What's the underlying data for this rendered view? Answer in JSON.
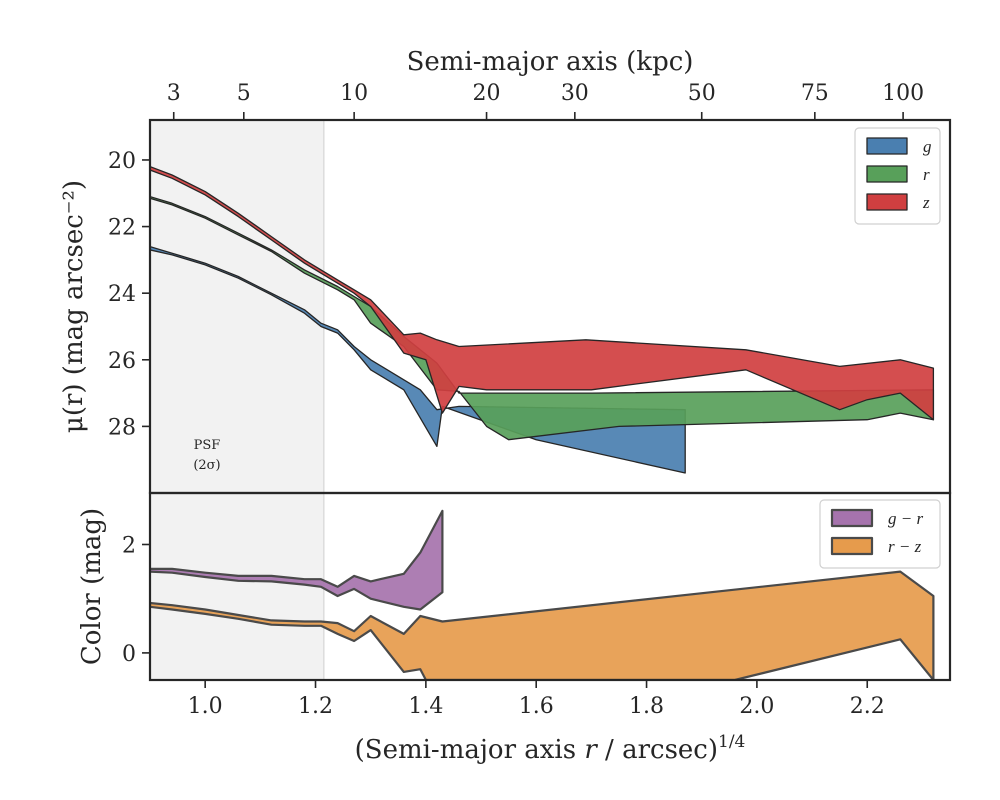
{
  "chart_data": [
    {
      "type": "area",
      "panel": "top",
      "ylabel": "μ(r) (mag arcsec⁻²)",
      "xlabel_top": "Semi-major axis (kpc)",
      "xlim": [
        0.9,
        2.35
      ],
      "ylim": [
        30.0,
        18.8
      ],
      "y_inverted": true,
      "yticks": [
        20,
        22,
        24,
        26,
        28
      ],
      "top_ticks": [
        {
          "label": "3",
          "x": 0.943
        },
        {
          "label": "5",
          "x": 1.07
        },
        {
          "label": "10",
          "x": 1.27
        },
        {
          "label": "20",
          "x": 1.51
        },
        {
          "label": "30",
          "x": 1.67
        },
        {
          "label": "50",
          "x": 1.9
        },
        {
          "label": "75",
          "x": 2.105
        },
        {
          "label": "100",
          "x": 2.265
        }
      ],
      "psf_region": {
        "xmin": 0.9,
        "xmax": 1.215,
        "label_line1": "PSF",
        "label_line2": "(2σ)"
      },
      "series": [
        {
          "name": "g",
          "color": "#4a7fb0",
          "upper": [
            [
              0.9,
              22.6
            ],
            [
              0.94,
              22.8
            ],
            [
              1.0,
              23.1
            ],
            [
              1.06,
              23.5
            ],
            [
              1.12,
              24.0
            ],
            [
              1.18,
              24.5
            ],
            [
              1.21,
              24.9
            ],
            [
              1.24,
              25.1
            ],
            [
              1.27,
              25.6
            ],
            [
              1.3,
              26.0
            ],
            [
              1.36,
              26.6
            ],
            [
              1.39,
              26.9
            ],
            [
              1.42,
              27.5
            ],
            [
              1.46,
              27.4
            ],
            [
              1.87,
              27.5
            ]
          ],
          "lower": [
            [
              1.87,
              29.4
            ],
            [
              1.6,
              28.4
            ],
            [
              1.43,
              27.4
            ],
            [
              1.42,
              28.6
            ],
            [
              1.36,
              26.9
            ],
            [
              1.3,
              26.3
            ],
            [
              1.27,
              25.7
            ],
            [
              1.24,
              25.2
            ],
            [
              1.21,
              25.0
            ],
            [
              1.18,
              24.6
            ],
            [
              1.12,
              24.05
            ],
            [
              1.06,
              23.55
            ],
            [
              1.0,
              23.15
            ],
            [
              0.94,
              22.85
            ],
            [
              0.9,
              22.7
            ]
          ]
        },
        {
          "name": "r",
          "color": "#58a05a",
          "upper": [
            [
              0.9,
              21.1
            ],
            [
              0.94,
              21.3
            ],
            [
              1.0,
              21.7
            ],
            [
              1.06,
              22.2
            ],
            [
              1.12,
              22.7
            ],
            [
              1.18,
              23.3
            ],
            [
              1.24,
              23.8
            ],
            [
              1.27,
              24.1
            ],
            [
              1.3,
              24.4
            ],
            [
              1.36,
              25.3
            ],
            [
              1.42,
              26.1
            ],
            [
              1.46,
              27.0
            ],
            [
              1.7,
              27.0
            ],
            [
              2.32,
              26.9
            ]
          ],
          "lower": [
            [
              2.32,
              27.8
            ],
            [
              2.26,
              27.6
            ],
            [
              2.2,
              27.8
            ],
            [
              1.75,
              28.0
            ],
            [
              1.55,
              28.4
            ],
            [
              1.51,
              28.0
            ],
            [
              1.46,
              26.95
            ],
            [
              1.42,
              26.9
            ],
            [
              1.36,
              25.6
            ],
            [
              1.3,
              24.9
            ],
            [
              1.27,
              24.2
            ],
            [
              1.24,
              23.9
            ],
            [
              1.18,
              23.4
            ],
            [
              1.12,
              22.75
            ],
            [
              1.06,
              22.25
            ],
            [
              1.0,
              21.75
            ],
            [
              0.94,
              21.35
            ],
            [
              0.9,
              21.15
            ]
          ]
        },
        {
          "name": "z",
          "color": "#d03f40",
          "upper": [
            [
              0.9,
              20.2
            ],
            [
              0.94,
              20.45
            ],
            [
              1.0,
              20.95
            ],
            [
              1.06,
              21.6
            ],
            [
              1.12,
              22.3
            ],
            [
              1.18,
              23.0
            ],
            [
              1.24,
              23.6
            ],
            [
              1.27,
              23.9
            ],
            [
              1.3,
              24.2
            ],
            [
              1.36,
              25.25
            ],
            [
              1.39,
              25.2
            ],
            [
              1.42,
              25.4
            ],
            [
              1.46,
              25.6
            ],
            [
              1.69,
              25.4
            ],
            [
              1.98,
              25.7
            ],
            [
              2.15,
              26.2
            ],
            [
              2.26,
              26.0
            ],
            [
              2.32,
              26.25
            ]
          ],
          "lower": [
            [
              2.32,
              27.8
            ],
            [
              2.26,
              27.0
            ],
            [
              2.2,
              27.2
            ],
            [
              2.15,
              27.5
            ],
            [
              1.98,
              26.3
            ],
            [
              1.7,
              26.9
            ],
            [
              1.51,
              26.9
            ],
            [
              1.46,
              26.8
            ],
            [
              1.43,
              27.6
            ],
            [
              1.4,
              26.0
            ],
            [
              1.36,
              25.8
            ],
            [
              1.3,
              24.4
            ],
            [
              1.27,
              24.0
            ],
            [
              1.24,
              23.7
            ],
            [
              1.18,
              23.1
            ],
            [
              1.12,
              22.4
            ],
            [
              1.06,
              21.7
            ],
            [
              1.0,
              21.05
            ],
            [
              0.94,
              20.55
            ],
            [
              0.9,
              20.3
            ]
          ]
        }
      ]
    },
    {
      "type": "area",
      "panel": "bottom",
      "ylabel": "Color (mag)",
      "xlabel": "(Semi-major axis r / arcsec)^1/4",
      "xlabel_main": "(Semi-major axis ",
      "xlabel_var": "r",
      "xlabel_rest": " / arcsec)",
      "xlabel_sup": "1/4",
      "xlim": [
        0.9,
        2.35
      ],
      "ylim": [
        -0.5,
        2.95
      ],
      "xticks": [
        1.0,
        1.2,
        1.4,
        1.6,
        1.8,
        2.0,
        2.2
      ],
      "xtick_labels": [
        "1.0",
        "1.2",
        "1.4",
        "1.6",
        "1.8",
        "2.0",
        "2.2"
      ],
      "yticks": [
        0,
        2
      ],
      "ytick_labels": [
        "0",
        "2"
      ],
      "series": [
        {
          "name": "g − r",
          "color": "#a673ad",
          "upper": [
            [
              0.9,
              1.55
            ],
            [
              0.94,
              1.55
            ],
            [
              1.0,
              1.48
            ],
            [
              1.06,
              1.42
            ],
            [
              1.12,
              1.42
            ],
            [
              1.18,
              1.36
            ],
            [
              1.21,
              1.36
            ],
            [
              1.24,
              1.22
            ],
            [
              1.27,
              1.42
            ],
            [
              1.3,
              1.32
            ],
            [
              1.36,
              1.46
            ],
            [
              1.39,
              1.85
            ],
            [
              1.43,
              2.62
            ]
          ],
          "lower": [
            [
              1.43,
              1.12
            ],
            [
              1.39,
              0.8
            ],
            [
              1.36,
              0.85
            ],
            [
              1.3,
              1.0
            ],
            [
              1.27,
              1.18
            ],
            [
              1.24,
              1.05
            ],
            [
              1.21,
              1.22
            ],
            [
              1.18,
              1.26
            ],
            [
              1.12,
              1.32
            ],
            [
              1.06,
              1.33
            ],
            [
              1.0,
              1.4
            ],
            [
              0.94,
              1.48
            ],
            [
              0.9,
              1.5
            ]
          ]
        },
        {
          "name": "r − z",
          "color": "#e69b4c",
          "upper": [
            [
              0.9,
              0.92
            ],
            [
              0.94,
              0.88
            ],
            [
              1.0,
              0.8
            ],
            [
              1.06,
              0.7
            ],
            [
              1.12,
              0.6
            ],
            [
              1.18,
              0.58
            ],
            [
              1.21,
              0.58
            ],
            [
              1.24,
              0.55
            ],
            [
              1.27,
              0.4
            ],
            [
              1.3,
              0.68
            ],
            [
              1.36,
              0.35
            ],
            [
              1.39,
              0.68
            ],
            [
              1.43,
              0.58
            ],
            [
              2.26,
              1.5
            ],
            [
              2.32,
              1.05
            ]
          ],
          "lower": [
            [
              2.32,
              -0.5
            ],
            [
              2.26,
              0.25
            ],
            [
              1.96,
              -0.5
            ],
            [
              1.4,
              -0.5
            ],
            [
              1.39,
              -0.3
            ],
            [
              1.36,
              -0.35
            ],
            [
              1.3,
              0.42
            ],
            [
              1.27,
              0.22
            ],
            [
              1.24,
              0.35
            ],
            [
              1.21,
              0.5
            ],
            [
              1.18,
              0.5
            ],
            [
              1.12,
              0.52
            ],
            [
              1.06,
              0.63
            ],
            [
              1.0,
              0.72
            ],
            [
              0.94,
              0.8
            ],
            [
              0.9,
              0.85
            ]
          ]
        }
      ]
    }
  ]
}
